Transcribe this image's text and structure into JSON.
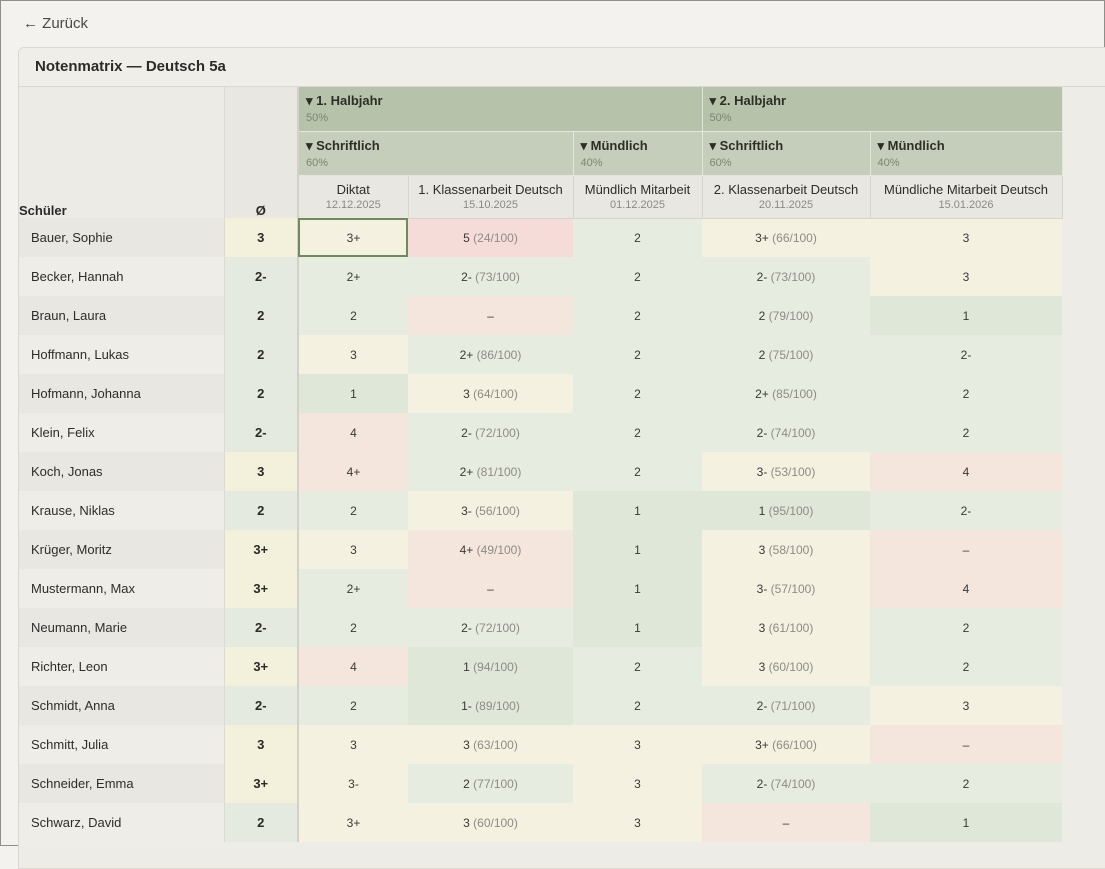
{
  "nav": {
    "back_label": "← Zurück"
  },
  "panel": {
    "title": "Notenmatrix — Deutsch 5a"
  },
  "header": {
    "student_col": "Schüler",
    "avg_col": "Ø",
    "halves": [
      {
        "label": "▾ 1. Halbjahr",
        "weight": "50%"
      },
      {
        "label": "▾ 2. Halbjahr",
        "weight": "50%"
      }
    ],
    "groups": [
      {
        "label": "▾ Schriftlich",
        "weight": "60%"
      },
      {
        "label": "▾ Mündlich",
        "weight": "40%"
      },
      {
        "label": "▾ Schriftlich",
        "weight": "60%"
      },
      {
        "label": "▾ Mündlich",
        "weight": "40%"
      }
    ],
    "assessments": [
      {
        "name": "Diktat",
        "date": "12.12.2025"
      },
      {
        "name": "1. Klassenarbeit Deutsch",
        "date": "15.10.2025"
      },
      {
        "name": "Mündlich Mitarbeit",
        "date": "01.12.2025"
      },
      {
        "name": "2. Klassenarbeit Deutsch",
        "date": "20.11.2025"
      },
      {
        "name": "Mündliche Mitarbeit Deutsch",
        "date": "15.01.2026"
      }
    ]
  },
  "rows": [
    {
      "name": "Bauer, Sophie",
      "avg": "3",
      "avg_tone": "yellow",
      "cells": [
        {
          "g": "3+",
          "p": "",
          "t": "yellow",
          "sel": true
        },
        {
          "g": "5",
          "p": "(24/100)",
          "t": "pink"
        },
        {
          "g": "2",
          "p": "",
          "t": "green"
        },
        {
          "g": "3+",
          "p": "(66/100)",
          "t": "yellow"
        },
        {
          "g": "3",
          "p": "",
          "t": "yellow"
        }
      ]
    },
    {
      "name": "Becker, Hannah",
      "avg": "2-",
      "avg_tone": "green",
      "cells": [
        {
          "g": "2+",
          "p": "",
          "t": "green"
        },
        {
          "g": "2-",
          "p": "(73/100)",
          "t": "green"
        },
        {
          "g": "2",
          "p": "",
          "t": "green"
        },
        {
          "g": "2-",
          "p": "(73/100)",
          "t": "green"
        },
        {
          "g": "3",
          "p": "",
          "t": "yellow"
        }
      ]
    },
    {
      "name": "Braun, Laura",
      "avg": "2",
      "avg_tone": "green",
      "cells": [
        {
          "g": "2",
          "p": "",
          "t": "green"
        },
        {
          "g": "–",
          "p": "",
          "t": "red"
        },
        {
          "g": "2",
          "p": "",
          "t": "green"
        },
        {
          "g": "2",
          "p": "(79/100)",
          "t": "green"
        },
        {
          "g": "1",
          "p": "",
          "t": "green2"
        }
      ]
    },
    {
      "name": "Hoffmann, Lukas",
      "avg": "2",
      "avg_tone": "green",
      "cells": [
        {
          "g": "3",
          "p": "",
          "t": "yellow"
        },
        {
          "g": "2+",
          "p": "(86/100)",
          "t": "green"
        },
        {
          "g": "2",
          "p": "",
          "t": "green"
        },
        {
          "g": "2",
          "p": "(75/100)",
          "t": "green"
        },
        {
          "g": "2-",
          "p": "",
          "t": "green"
        }
      ]
    },
    {
      "name": "Hofmann, Johanna",
      "avg": "2",
      "avg_tone": "green",
      "cells": [
        {
          "g": "1",
          "p": "",
          "t": "green2"
        },
        {
          "g": "3",
          "p": "(64/100)",
          "t": "yellow"
        },
        {
          "g": "2",
          "p": "",
          "t": "green"
        },
        {
          "g": "2+",
          "p": "(85/100)",
          "t": "green"
        },
        {
          "g": "2",
          "p": "",
          "t": "green"
        }
      ]
    },
    {
      "name": "Klein, Felix",
      "avg": "2-",
      "avg_tone": "green",
      "cells": [
        {
          "g": "4",
          "p": "",
          "t": "red"
        },
        {
          "g": "2-",
          "p": "(72/100)",
          "t": "green"
        },
        {
          "g": "2",
          "p": "",
          "t": "green"
        },
        {
          "g": "2-",
          "p": "(74/100)",
          "t": "green"
        },
        {
          "g": "2",
          "p": "",
          "t": "green"
        }
      ]
    },
    {
      "name": "Koch, Jonas",
      "avg": "3",
      "avg_tone": "yellow",
      "cells": [
        {
          "g": "4+",
          "p": "",
          "t": "red"
        },
        {
          "g": "2+",
          "p": "(81/100)",
          "t": "green"
        },
        {
          "g": "2",
          "p": "",
          "t": "green"
        },
        {
          "g": "3-",
          "p": "(53/100)",
          "t": "yellow"
        },
        {
          "g": "4",
          "p": "",
          "t": "red"
        }
      ]
    },
    {
      "name": "Krause, Niklas",
      "avg": "2",
      "avg_tone": "green",
      "cells": [
        {
          "g": "2",
          "p": "",
          "t": "green"
        },
        {
          "g": "3-",
          "p": "(56/100)",
          "t": "yellow"
        },
        {
          "g": "1",
          "p": "",
          "t": "green2"
        },
        {
          "g": "1",
          "p": "(95/100)",
          "t": "green2"
        },
        {
          "g": "2-",
          "p": "",
          "t": "green"
        }
      ]
    },
    {
      "name": "Krüger, Moritz",
      "avg": "3+",
      "avg_tone": "yellow",
      "cells": [
        {
          "g": "3",
          "p": "",
          "t": "yellow"
        },
        {
          "g": "4+",
          "p": "(49/100)",
          "t": "red"
        },
        {
          "g": "1",
          "p": "",
          "t": "green2"
        },
        {
          "g": "3",
          "p": "(58/100)",
          "t": "yellow"
        },
        {
          "g": "–",
          "p": "",
          "t": "red"
        }
      ]
    },
    {
      "name": "Mustermann, Max",
      "avg": "3+",
      "avg_tone": "yellow",
      "cells": [
        {
          "g": "2+",
          "p": "",
          "t": "green"
        },
        {
          "g": "–",
          "p": "",
          "t": "red"
        },
        {
          "g": "1",
          "p": "",
          "t": "green2"
        },
        {
          "g": "3-",
          "p": "(57/100)",
          "t": "yellow"
        },
        {
          "g": "4",
          "p": "",
          "t": "red"
        }
      ]
    },
    {
      "name": "Neumann, Marie",
      "avg": "2-",
      "avg_tone": "green",
      "cells": [
        {
          "g": "2",
          "p": "",
          "t": "green"
        },
        {
          "g": "2-",
          "p": "(72/100)",
          "t": "green"
        },
        {
          "g": "1",
          "p": "",
          "t": "green2"
        },
        {
          "g": "3",
          "p": "(61/100)",
          "t": "yellow"
        },
        {
          "g": "2",
          "p": "",
          "t": "green"
        }
      ]
    },
    {
      "name": "Richter, Leon",
      "avg": "3+",
      "avg_tone": "yellow",
      "cells": [
        {
          "g": "4",
          "p": "",
          "t": "red"
        },
        {
          "g": "1",
          "p": "(94/100)",
          "t": "green2"
        },
        {
          "g": "2",
          "p": "",
          "t": "green"
        },
        {
          "g": "3",
          "p": "(60/100)",
          "t": "yellow"
        },
        {
          "g": "2",
          "p": "",
          "t": "green"
        }
      ]
    },
    {
      "name": "Schmidt, Anna",
      "avg": "2-",
      "avg_tone": "green",
      "cells": [
        {
          "g": "2",
          "p": "",
          "t": "green"
        },
        {
          "g": "1-",
          "p": "(89/100)",
          "t": "green2"
        },
        {
          "g": "2",
          "p": "",
          "t": "green"
        },
        {
          "g": "2-",
          "p": "(71/100)",
          "t": "green"
        },
        {
          "g": "3",
          "p": "",
          "t": "yellow"
        }
      ]
    },
    {
      "name": "Schmitt, Julia",
      "avg": "3",
      "avg_tone": "yellow",
      "cells": [
        {
          "g": "3",
          "p": "",
          "t": "yellow"
        },
        {
          "g": "3",
          "p": "(63/100)",
          "t": "yellow"
        },
        {
          "g": "3",
          "p": "",
          "t": "yellow"
        },
        {
          "g": "3+",
          "p": "(66/100)",
          "t": "yellow"
        },
        {
          "g": "–",
          "p": "",
          "t": "red"
        }
      ]
    },
    {
      "name": "Schneider, Emma",
      "avg": "3+",
      "avg_tone": "yellow",
      "cells": [
        {
          "g": "3-",
          "p": "",
          "t": "yellow"
        },
        {
          "g": "2",
          "p": "(77/100)",
          "t": "green"
        },
        {
          "g": "3",
          "p": "",
          "t": "yellow"
        },
        {
          "g": "2-",
          "p": "(74/100)",
          "t": "green"
        },
        {
          "g": "2",
          "p": "",
          "t": "green"
        }
      ]
    },
    {
      "name": "Schwarz, David",
      "avg": "2",
      "avg_tone": "green",
      "cells": [
        {
          "g": "3+",
          "p": "",
          "t": "yellow"
        },
        {
          "g": "3",
          "p": "(60/100)",
          "t": "yellow"
        },
        {
          "g": "3",
          "p": "",
          "t": "yellow"
        },
        {
          "g": "–",
          "p": "",
          "t": "red"
        },
        {
          "g": "1",
          "p": "",
          "t": "green2"
        }
      ]
    }
  ]
}
